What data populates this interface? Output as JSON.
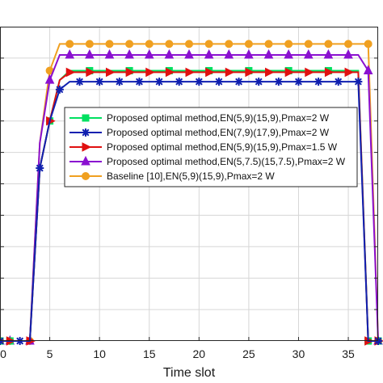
{
  "chart_data": {
    "type": "line",
    "xlabel": "Time slot",
    "ylabel": "",
    "xlim": [
      0,
      38
    ],
    "ylim": [
      0,
      1
    ],
    "xticks": [
      0,
      5,
      10,
      15,
      20,
      25,
      30,
      35
    ],
    "grid": true,
    "legend_position": "center",
    "series": [
      {
        "name": "Proposed optimal method,EN(5,9)(15,9),Pmax=2 W",
        "color": "#00e060",
        "marker": "square",
        "x": [
          0,
          1,
          2,
          3,
          4,
          5,
          6,
          7,
          8,
          9,
          10,
          11,
          12,
          13,
          14,
          15,
          16,
          17,
          18,
          19,
          20,
          21,
          22,
          23,
          24,
          25,
          26,
          27,
          28,
          29,
          30,
          31,
          32,
          33,
          34,
          35,
          36,
          37,
          38
        ],
        "y": [
          0,
          0,
          0,
          0,
          0.55,
          0.7,
          0.83,
          0.86,
          0.86,
          0.86,
          0.86,
          0.86,
          0.86,
          0.86,
          0.86,
          0.86,
          0.86,
          0.86,
          0.86,
          0.86,
          0.86,
          0.86,
          0.86,
          0.86,
          0.86,
          0.86,
          0.86,
          0.86,
          0.86,
          0.86,
          0.86,
          0.86,
          0.86,
          0.86,
          0.86,
          0.86,
          0.86,
          0,
          0
        ]
      },
      {
        "name": "Proposed optimal method,EN(7,9)(17,9),Pmax=2 W",
        "color": "#1020b0",
        "marker": "star",
        "x": [
          0,
          1,
          2,
          3,
          4,
          5,
          6,
          7,
          8,
          9,
          10,
          11,
          12,
          13,
          14,
          15,
          16,
          17,
          18,
          19,
          20,
          21,
          22,
          23,
          24,
          25,
          26,
          27,
          28,
          29,
          30,
          31,
          32,
          33,
          34,
          35,
          36,
          37,
          38
        ],
        "y": [
          0,
          0,
          0,
          0,
          0.55,
          0.7,
          0.8,
          0.825,
          0.825,
          0.825,
          0.825,
          0.825,
          0.825,
          0.825,
          0.825,
          0.825,
          0.825,
          0.825,
          0.825,
          0.825,
          0.825,
          0.825,
          0.825,
          0.825,
          0.825,
          0.825,
          0.825,
          0.825,
          0.825,
          0.825,
          0.825,
          0.825,
          0.825,
          0.825,
          0.825,
          0.825,
          0.825,
          0,
          0
        ]
      },
      {
        "name": "Proposed optimal method,EN(5,9)(15,9),Pmax=1.5 W",
        "color": "#e01010",
        "marker": "triangle-right",
        "x": [
          0,
          1,
          2,
          3,
          4,
          5,
          6,
          7,
          8,
          9,
          10,
          11,
          12,
          13,
          14,
          15,
          16,
          17,
          18,
          19,
          20,
          21,
          22,
          23,
          24,
          25,
          26,
          27,
          28,
          29,
          30,
          31,
          32,
          33,
          34,
          35,
          36,
          37,
          38
        ],
        "y": [
          0,
          0,
          0,
          0,
          0.55,
          0.7,
          0.83,
          0.855,
          0.855,
          0.855,
          0.855,
          0.855,
          0.855,
          0.855,
          0.855,
          0.855,
          0.855,
          0.855,
          0.855,
          0.855,
          0.855,
          0.855,
          0.855,
          0.855,
          0.855,
          0.855,
          0.855,
          0.855,
          0.855,
          0.855,
          0.855,
          0.855,
          0.855,
          0.855,
          0.855,
          0.855,
          0.855,
          0,
          0
        ]
      },
      {
        "name": "Proposed optimal method,EN(5,7.5)(15,7.5),Pmax=2 W",
        "color": "#8a10d0",
        "marker": "triangle-up",
        "x": [
          0,
          1,
          2,
          3,
          4,
          5,
          6,
          7,
          8,
          9,
          10,
          11,
          12,
          13,
          14,
          15,
          16,
          17,
          18,
          19,
          20,
          21,
          22,
          23,
          24,
          25,
          26,
          27,
          28,
          29,
          30,
          31,
          32,
          33,
          34,
          35,
          36,
          37,
          38
        ],
        "y": [
          0,
          0,
          0,
          0,
          0.63,
          0.83,
          0.91,
          0.91,
          0.91,
          0.91,
          0.91,
          0.91,
          0.91,
          0.91,
          0.91,
          0.91,
          0.91,
          0.91,
          0.91,
          0.91,
          0.91,
          0.91,
          0.91,
          0.91,
          0.91,
          0.91,
          0.91,
          0.91,
          0.91,
          0.91,
          0.91,
          0.91,
          0.91,
          0.91,
          0.91,
          0.91,
          0.91,
          0.86,
          0
        ]
      },
      {
        "name": "Baseline [10],EN(5,9)(15,9),Pmax=2 W",
        "color": "#f0a020",
        "marker": "circle",
        "x": [
          0,
          1,
          2,
          3,
          4,
          5,
          6,
          7,
          8,
          9,
          10,
          11,
          12,
          13,
          14,
          15,
          16,
          17,
          18,
          19,
          20,
          21,
          22,
          23,
          24,
          25,
          26,
          27,
          28,
          29,
          30,
          31,
          32,
          33,
          34,
          35,
          36,
          37,
          38
        ],
        "y": [
          0,
          0,
          0,
          0,
          0.63,
          0.86,
          0.945,
          0.945,
          0.945,
          0.945,
          0.945,
          0.945,
          0.945,
          0.945,
          0.945,
          0.945,
          0.945,
          0.945,
          0.945,
          0.945,
          0.945,
          0.945,
          0.945,
          0.945,
          0.945,
          0.945,
          0.945,
          0.945,
          0.945,
          0.945,
          0.945,
          0.945,
          0.945,
          0.945,
          0.945,
          0.945,
          0.945,
          0.945,
          0
        ]
      }
    ]
  }
}
